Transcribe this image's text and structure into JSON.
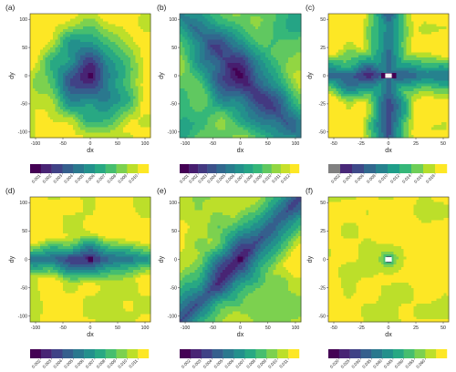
{
  "chart_data": [
    {
      "panel": "(a)",
      "type": "heatmap",
      "xlabel": "dx",
      "ylabel": "dy",
      "xlim": [
        -110,
        110
      ],
      "ylim": [
        -110,
        110
      ],
      "xticks": [
        -100,
        -50,
        0,
        50,
        100
      ],
      "yticks": [
        -100,
        -50,
        0,
        50,
        100
      ],
      "pattern": "radial",
      "min": 0.001,
      "max": 0.0112,
      "legend_ticks": [
        "0.001",
        "0.002",
        "0.003",
        "0.004",
        "0.005",
        "0.006",
        "0.007",
        "0.008",
        "0.009",
        "0.010"
      ],
      "legend_levels": 11
    },
    {
      "panel": "(b)",
      "type": "heatmap",
      "xlabel": "dx",
      "ylabel": "dy",
      "xlim": [
        -110,
        110
      ],
      "ylim": [
        -110,
        110
      ],
      "xticks": [
        -100,
        -50,
        0,
        50,
        100
      ],
      "yticks": [
        -100,
        -50,
        0,
        50,
        100
      ],
      "pattern": "diagonal-negative",
      "min": 0.001,
      "max": 0.0126,
      "legend_ticks": [
        "0.001",
        "0.002",
        "0.003",
        "0.004",
        "0.005",
        "0.006",
        "0.007",
        "0.008",
        "0.009",
        "0.010",
        "0.011",
        "0.012"
      ],
      "legend_levels": 13
    },
    {
      "panel": "(c)",
      "type": "heatmap",
      "xlabel": "dx",
      "ylabel": "dy",
      "xlim": [
        -55,
        55
      ],
      "ylim": [
        -55,
        55
      ],
      "xticks": [
        -50,
        -25,
        0,
        25,
        50
      ],
      "yticks": [
        -50,
        -25,
        0,
        25,
        50
      ],
      "pattern": "cross",
      "min": 0.002,
      "max": 0.019,
      "legend_ticks": [
        "0.002",
        "0.004",
        "0.006",
        "0.008",
        "0.010",
        "0.012",
        "0.014",
        "0.016",
        "0.018"
      ],
      "legend_levels": 10,
      "legend_first_color": "#808080"
    },
    {
      "panel": "(d)",
      "type": "heatmap",
      "xlabel": "dx",
      "ylabel": "dy",
      "xlim": [
        -110,
        110
      ],
      "ylim": [
        -110,
        110
      ],
      "xticks": [
        -100,
        -50,
        0,
        50,
        100
      ],
      "yticks": [
        -100,
        -50,
        0,
        50,
        100
      ],
      "pattern": "horizontal",
      "min": 0.002,
      "max": 0.0118,
      "legend_ticks": [
        "0.002",
        "0.003",
        "0.004",
        "0.005",
        "0.006",
        "0.007",
        "0.008",
        "0.009",
        "0.010",
        "0.011"
      ],
      "legend_levels": 11
    },
    {
      "panel": "(e)",
      "type": "heatmap",
      "xlabel": "dx",
      "ylabel": "dy",
      "xlim": [
        -110,
        110
      ],
      "ylim": [
        -110,
        110
      ],
      "xticks": [
        -100,
        -50,
        0,
        50,
        100
      ],
      "yticks": [
        -100,
        -50,
        0,
        50,
        100
      ],
      "pattern": "diagonal-positive",
      "min": 0.002,
      "max": 0.0118,
      "legend_ticks": [
        "0.002",
        "0.003",
        "0.004",
        "0.005",
        "0.006",
        "0.007",
        "0.008",
        "0.009",
        "0.010",
        "0.011"
      ],
      "legend_levels": 11
    },
    {
      "panel": "(f)",
      "type": "heatmap",
      "xlabel": "dx",
      "ylabel": "dy",
      "xlim": [
        -55,
        55
      ],
      "ylim": [
        -55,
        55
      ],
      "xticks": [
        -50,
        -25,
        0,
        25,
        50
      ],
      "yticks": [
        -50,
        -25,
        0,
        25,
        50
      ],
      "pattern": "peak",
      "min": 0.015,
      "max": 0.064,
      "legend_ticks": [
        "0.020",
        "0.025",
        "0.030",
        "0.035",
        "0.040",
        "0.045",
        "0.050",
        "0.055",
        "0.060"
      ],
      "legend_levels": 11
    }
  ],
  "colors": {
    "palette": [
      "#440154",
      "#482878",
      "#3e4989",
      "#31688e",
      "#26828e",
      "#1f9e89",
      "#35b779",
      "#6ece58",
      "#b5de2b",
      "#fde725"
    ],
    "panel_border": "#333333",
    "grid": "#ebebeb"
  }
}
